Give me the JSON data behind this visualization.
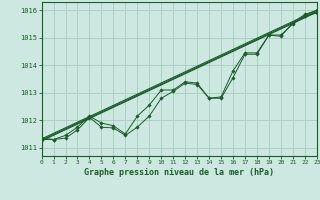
{
  "title": "Graphe pression niveau de la mer (hPa)",
  "background_color": "#cde8e0",
  "grid_color": "#a8ccbe",
  "line_color": "#1a5c2a",
  "x_ticks": [
    0,
    1,
    2,
    3,
    4,
    5,
    6,
    7,
    8,
    9,
    10,
    11,
    12,
    13,
    14,
    15,
    16,
    17,
    18,
    19,
    20,
    21,
    22,
    23
  ],
  "ylim": [
    1010.7,
    1016.3
  ],
  "yticks": [
    1011,
    1012,
    1013,
    1014,
    1015,
    1016
  ],
  "series1": [
    1011.3,
    1011.3,
    1011.35,
    1011.65,
    1012.1,
    1011.75,
    1011.72,
    1011.45,
    1011.75,
    1012.15,
    1012.8,
    1013.05,
    1013.35,
    1013.3,
    1012.8,
    1012.8,
    1013.55,
    1014.4,
    1014.4,
    1015.1,
    1015.1,
    1015.5,
    1015.8,
    1015.9
  ],
  "series2": [
    1011.35,
    1011.3,
    1011.45,
    1011.75,
    1012.15,
    1011.9,
    1011.8,
    1011.5,
    1012.15,
    1012.55,
    1013.1,
    1013.1,
    1013.4,
    1013.35,
    1012.8,
    1012.85,
    1013.8,
    1014.45,
    1014.45,
    1015.1,
    1015.05,
    1015.55,
    1015.85,
    1016.0
  ],
  "reg1": [
    1011.25,
    1015.93
  ],
  "reg2": [
    1011.28,
    1015.96
  ],
  "reg3": [
    1011.32,
    1016.0
  ]
}
